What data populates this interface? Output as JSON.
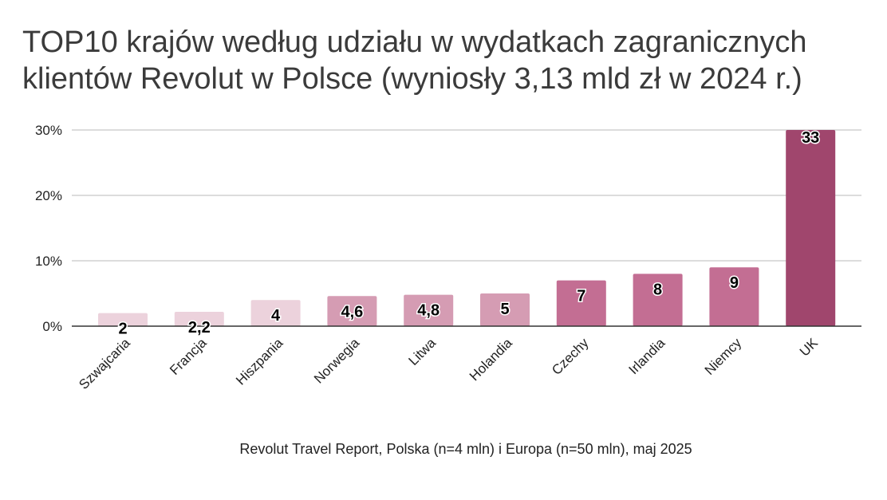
{
  "title": {
    "line1": "TOP10 krajów według udziału w wydatkach zagranicznych",
    "line2": "klientów Revolut w Polsce (wyniosły 3,13 mld zł w 2024 r.)"
  },
  "source_note": "Revolut Travel Report, Polska (n=4 mln) i Europa (n=50 mln), maj 2025",
  "chart_data": {
    "type": "bar",
    "title": "TOP10 krajów według udziału w wydatkach zagranicznych klientów Revolut w Polsce (wyniosły 3,13 mld zł w 2024 r.)",
    "categories": [
      "Szwajcaria",
      "Francja",
      "Hiszpania",
      "Norwegia",
      "Litwa",
      "Holandia",
      "Czechy",
      "Irlandia",
      "Niemcy",
      "UK"
    ],
    "values": [
      2,
      2.2,
      4,
      4.6,
      4.8,
      5,
      7,
      8,
      9,
      33
    ],
    "data_labels": [
      "2",
      "2,2",
      "4",
      "4,6",
      "4,8",
      "5",
      "7",
      "8",
      "9",
      "33"
    ],
    "bar_colors": [
      "#ecd2dc",
      "#ecd2dc",
      "#ecd2dc",
      "#d59cb3",
      "#d59cb3",
      "#d59cb3",
      "#c36e93",
      "#c36e93",
      "#c36e93",
      "#a0466d"
    ],
    "y_ticks": [
      0,
      10,
      20,
      30
    ],
    "y_tick_labels": [
      "0%",
      "10%",
      "20%",
      "30%"
    ],
    "ylim": [
      0,
      30
    ],
    "y_unit": "%",
    "xlabel": "",
    "ylabel": "",
    "grid": true,
    "legend": "none",
    "x_label_rotation": -45
  }
}
